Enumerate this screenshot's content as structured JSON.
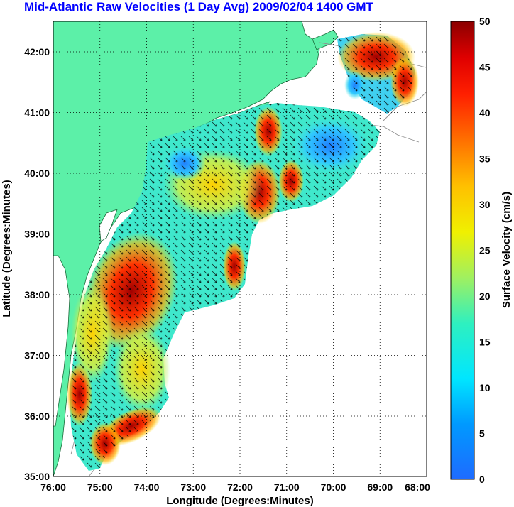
{
  "title": "Mid-Atlantic Raw Velocities (1 Day Avg) 2009/02/04 1400 GMT",
  "map": {
    "xlabel": "Longitude (Degrees:Minutes)",
    "ylabel": "Latitude (Degrees:Minutes)",
    "lon_ticks": [
      "76:00",
      "75:00",
      "74:00",
      "73:00",
      "72:00",
      "71:00",
      "70:00",
      "69:00",
      "68:00"
    ],
    "lat_ticks": [
      "42:00",
      "41:00",
      "40:00",
      "39:00",
      "38:00",
      "37:00",
      "36:00",
      "35:00"
    ],
    "lon_range": [
      -76,
      -68
    ],
    "lat_range": [
      35,
      42.5
    ],
    "land_color": "#5cf0a8",
    "grid": "dotted"
  },
  "colorbar": {
    "label": "Surface Velocity (cm/s)",
    "ticks": [
      "50",
      "45",
      "40",
      "35",
      "30",
      "25",
      "20",
      "15",
      "10",
      "5",
      "0"
    ],
    "range": [
      0,
      50
    ],
    "colormap": "jet"
  }
}
